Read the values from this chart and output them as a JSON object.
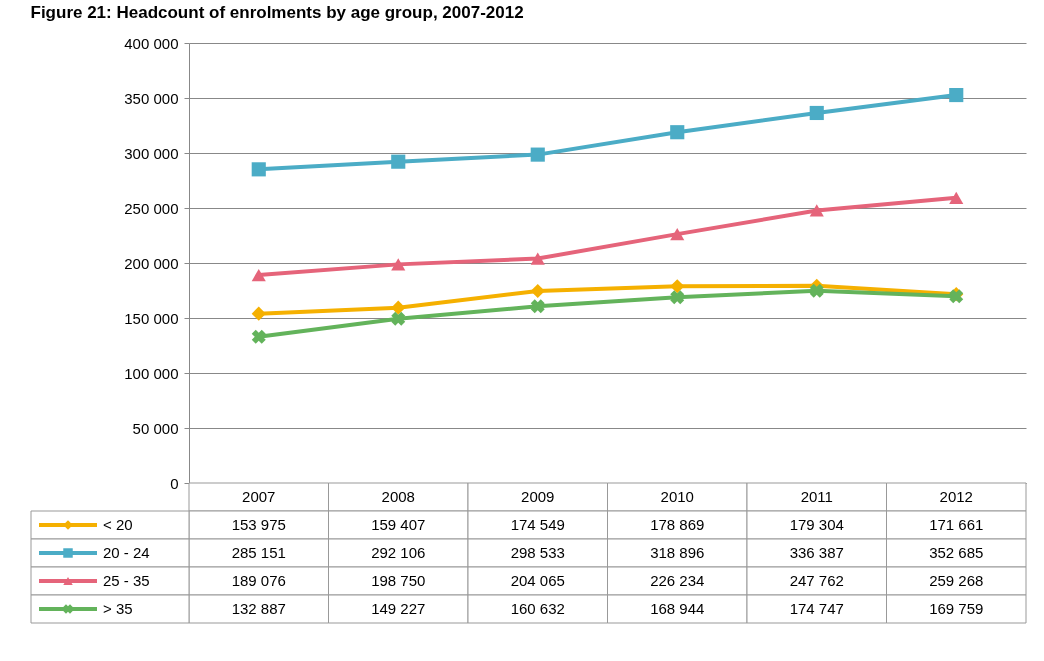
{
  "chart_data": {
    "type": "line",
    "title": "Figure 21: Headcount of enrolments by age group, 2007-2012",
    "categories": [
      "2007",
      "2008",
      "2009",
      "2010",
      "2011",
      "2012"
    ],
    "series": [
      {
        "name": "< 20",
        "color": "#f5b000",
        "marker": "diamond",
        "values": [
          153975,
          159407,
          174549,
          178869,
          179304,
          171661
        ]
      },
      {
        "name": "20 - 24",
        "color": "#4bacc6",
        "marker": "square",
        "values": [
          285151,
          292106,
          298533,
          318896,
          336387,
          352685
        ]
      },
      {
        "name": "25 - 35",
        "color": "#e5647a",
        "marker": "triangle",
        "values": [
          189076,
          198750,
          204065,
          226234,
          247762,
          259268
        ]
      },
      {
        "name": "> 35",
        "color": "#63b35b",
        "marker": "cross",
        "values": [
          132887,
          149227,
          160632,
          168944,
          174747,
          169759
        ]
      }
    ],
    "ylim": [
      0,
      400000
    ],
    "yticks": [
      0,
      {
        "value": 50000,
        "label": "50 000"
      },
      {
        "value": 100000,
        "label": "100 000"
      },
      {
        "value": 150000,
        "label": "150 000"
      },
      {
        "value": 200000,
        "label": "200 000"
      },
      {
        "value": 250000,
        "label": "250 000"
      },
      {
        "value": 300000,
        "label": "300 000"
      },
      {
        "value": 350000,
        "label": "350 000"
      },
      {
        "value": 400000,
        "label": "400 000"
      }
    ],
    "grid": "y",
    "legend": "bottom left",
    "data_labels": true,
    "line_style": "solid"
  }
}
